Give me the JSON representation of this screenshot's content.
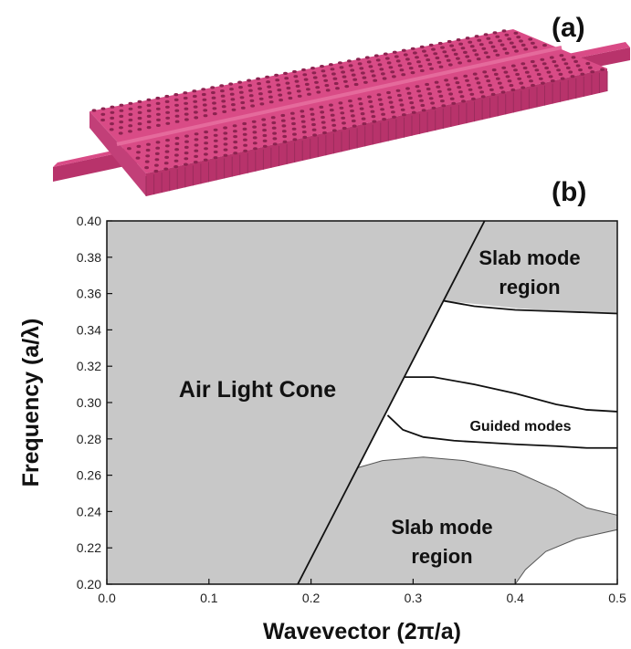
{
  "panels": {
    "a_label": "(a)",
    "b_label": "(b)"
  },
  "colors": {
    "structure": "#d94b86",
    "structure_dark": "#b8336b",
    "shaded_region": "#c8c8c8",
    "line": "#111111"
  },
  "chart_data": {
    "type": "line",
    "xlabel": "Wavevector (2π/a)",
    "ylabel": "Frequency (a/λ)",
    "xlim": [
      0.0,
      0.5
    ],
    "ylim": [
      0.2,
      0.4
    ],
    "xticks": [
      "0.0",
      "0.1",
      "0.2",
      "0.3",
      "0.4",
      "0.5"
    ],
    "yticks": [
      "0.20",
      "0.22",
      "0.24",
      "0.26",
      "0.28",
      "0.30",
      "0.32",
      "0.34",
      "0.36",
      "0.38",
      "0.40"
    ],
    "grid": false,
    "light_line": {
      "x": [
        0.187,
        0.37
      ],
      "y": [
        0.2,
        0.4
      ]
    },
    "regions": [
      {
        "name": "air-light-cone",
        "label": "Air Light Cone",
        "boundary": {
          "x": [
            0.0,
            0.187,
            0.37,
            0.0
          ],
          "y": [
            0.2,
            0.2,
            0.4,
            0.4
          ]
        }
      },
      {
        "name": "upper-slab-region",
        "label": "Slab mode region",
        "boundary": {
          "x": [
            0.37,
            0.5,
            0.5,
            0.45,
            0.4,
            0.33
          ],
          "y": [
            0.4,
            0.4,
            0.349,
            0.35,
            0.352,
            0.356
          ]
        }
      },
      {
        "name": "lower-slab-region",
        "label": "Slab mode region",
        "boundary": {
          "x": [
            0.187,
            0.245,
            0.27,
            0.31,
            0.35,
            0.4,
            0.44,
            0.47,
            0.5,
            0.5,
            0.46,
            0.43,
            0.41,
            0.4
          ],
          "y": [
            0.2,
            0.264,
            0.268,
            0.27,
            0.268,
            0.262,
            0.252,
            0.242,
            0.238,
            0.23,
            0.225,
            0.218,
            0.208,
            0.2
          ]
        }
      }
    ],
    "guided_mode_label": "Guided modes",
    "series": [
      {
        "x": [
          0.33,
          0.36,
          0.4,
          0.45,
          0.5
        ],
        "y": [
          0.356,
          0.353,
          0.351,
          0.35,
          0.349
        ]
      },
      {
        "x": [
          0.292,
          0.32,
          0.36,
          0.4,
          0.44,
          0.47,
          0.5
        ],
        "y": [
          0.314,
          0.314,
          0.31,
          0.305,
          0.299,
          0.296,
          0.295
        ]
      },
      {
        "x": [
          0.275,
          0.29,
          0.31,
          0.34,
          0.37,
          0.4,
          0.44,
          0.47,
          0.5
        ],
        "y": [
          0.293,
          0.285,
          0.281,
          0.279,
          0.278,
          0.277,
          0.276,
          0.275,
          0.275
        ]
      }
    ]
  }
}
